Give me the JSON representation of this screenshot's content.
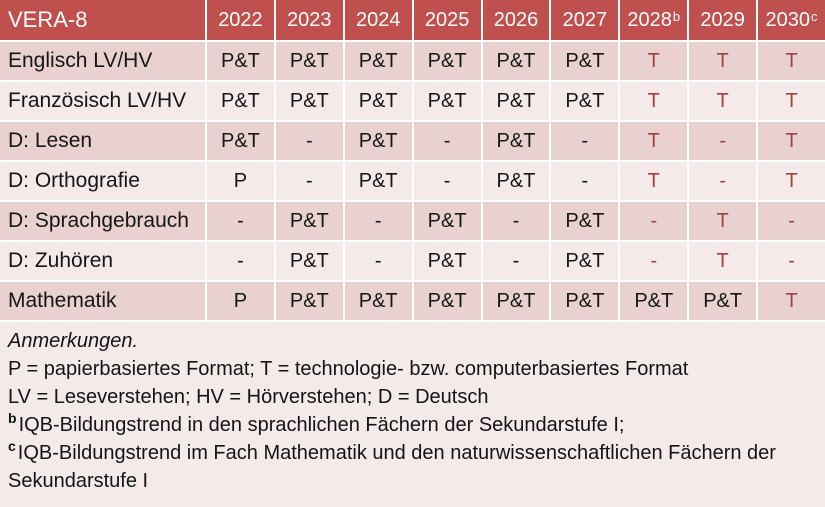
{
  "colors": {
    "header_bg": "#c0504d",
    "header_text": "#ffffff",
    "band_dark": "#e8d1cf",
    "band_light": "#f3eae9",
    "value_text": "#161616",
    "tech_red": "#9f4340",
    "divider": "#ffffff"
  },
  "table": {
    "title": "VERA-8",
    "years": [
      {
        "label": "2022",
        "sup": ""
      },
      {
        "label": "2023",
        "sup": ""
      },
      {
        "label": "2024",
        "sup": ""
      },
      {
        "label": "2025",
        "sup": ""
      },
      {
        "label": "2026",
        "sup": ""
      },
      {
        "label": "2027",
        "sup": ""
      },
      {
        "label": "2028",
        "sup": "b"
      },
      {
        "label": "2029",
        "sup": ""
      },
      {
        "label": "2030",
        "sup": "c"
      }
    ],
    "rows": [
      {
        "label": "Englisch LV/HV",
        "band": "dark",
        "cells": [
          {
            "text": "P&T",
            "color": "black"
          },
          {
            "text": "P&T",
            "color": "black"
          },
          {
            "text": "P&T",
            "color": "black"
          },
          {
            "text": "P&T",
            "color": "black"
          },
          {
            "text": "P&T",
            "color": "black"
          },
          {
            "text": "P&T",
            "color": "black"
          },
          {
            "text": "T",
            "color": "red"
          },
          {
            "text": "T",
            "color": "red"
          },
          {
            "text": "T",
            "color": "red"
          }
        ]
      },
      {
        "label": "Französisch LV/HV",
        "band": "light",
        "cells": [
          {
            "text": "P&T",
            "color": "black"
          },
          {
            "text": "P&T",
            "color": "black"
          },
          {
            "text": "P&T",
            "color": "black"
          },
          {
            "text": "P&T",
            "color": "black"
          },
          {
            "text": "P&T",
            "color": "black"
          },
          {
            "text": "P&T",
            "color": "black"
          },
          {
            "text": "T",
            "color": "red"
          },
          {
            "text": "T",
            "color": "red"
          },
          {
            "text": "T",
            "color": "red"
          }
        ]
      },
      {
        "label": "D: Lesen",
        "band": "dark",
        "cells": [
          {
            "text": "P&T",
            "color": "black"
          },
          {
            "text": "-",
            "color": "black"
          },
          {
            "text": "P&T",
            "color": "black"
          },
          {
            "text": "-",
            "color": "black"
          },
          {
            "text": "P&T",
            "color": "black"
          },
          {
            "text": "-",
            "color": "black"
          },
          {
            "text": "T",
            "color": "red"
          },
          {
            "text": "-",
            "color": "red"
          },
          {
            "text": "T",
            "color": "red"
          }
        ]
      },
      {
        "label": "D: Orthografie",
        "band": "light",
        "cells": [
          {
            "text": "P",
            "color": "black"
          },
          {
            "text": "-",
            "color": "black"
          },
          {
            "text": "P&T",
            "color": "black"
          },
          {
            "text": "-",
            "color": "black"
          },
          {
            "text": "P&T",
            "color": "black"
          },
          {
            "text": "-",
            "color": "black"
          },
          {
            "text": "T",
            "color": "red"
          },
          {
            "text": "-",
            "color": "red"
          },
          {
            "text": "T",
            "color": "red"
          }
        ]
      },
      {
        "label": "D: Sprachgebrauch",
        "band": "dark",
        "cells": [
          {
            "text": "-",
            "color": "black"
          },
          {
            "text": "P&T",
            "color": "black"
          },
          {
            "text": "-",
            "color": "black"
          },
          {
            "text": "P&T",
            "color": "black"
          },
          {
            "text": "-",
            "color": "black"
          },
          {
            "text": "P&T",
            "color": "black"
          },
          {
            "text": "-",
            "color": "red"
          },
          {
            "text": "T",
            "color": "red"
          },
          {
            "text": "-",
            "color": "red"
          }
        ]
      },
      {
        "label": "D: Zuhören",
        "band": "light",
        "cells": [
          {
            "text": "-",
            "color": "black"
          },
          {
            "text": "P&T",
            "color": "black"
          },
          {
            "text": "-",
            "color": "black"
          },
          {
            "text": "P&T",
            "color": "black"
          },
          {
            "text": "-",
            "color": "black"
          },
          {
            "text": "P&T",
            "color": "black"
          },
          {
            "text": "-",
            "color": "red"
          },
          {
            "text": "T",
            "color": "red"
          },
          {
            "text": "-",
            "color": "red"
          }
        ]
      },
      {
        "label": "Mathematik",
        "band": "dark",
        "cells": [
          {
            "text": "P",
            "color": "black"
          },
          {
            "text": "P&T",
            "color": "black"
          },
          {
            "text": "P&T",
            "color": "black"
          },
          {
            "text": "P&T",
            "color": "black"
          },
          {
            "text": "P&T",
            "color": "black"
          },
          {
            "text": "P&T",
            "color": "black"
          },
          {
            "text": "P&T",
            "color": "black"
          },
          {
            "text": "P&T",
            "color": "black"
          },
          {
            "text": "T",
            "color": "red"
          }
        ]
      }
    ]
  },
  "notes": {
    "title": "Anmerkungen.",
    "lines": [
      {
        "sup": "",
        "text": "P = papierbasiertes Format; T = technologie- bzw. computerbasiertes Format"
      },
      {
        "sup": "",
        "text": "LV = Leseverstehen; HV = Hörverstehen; D = Deutsch"
      },
      {
        "sup": "b",
        "text": "IQB-Bildungstrend in den sprachlichen Fächern der Sekundarstufe I;"
      },
      {
        "sup": "c",
        "text": "IQB-Bildungstrend im Fach Mathematik und den naturwissenschaftlichen Fächern der Sekundarstufe I"
      }
    ]
  }
}
